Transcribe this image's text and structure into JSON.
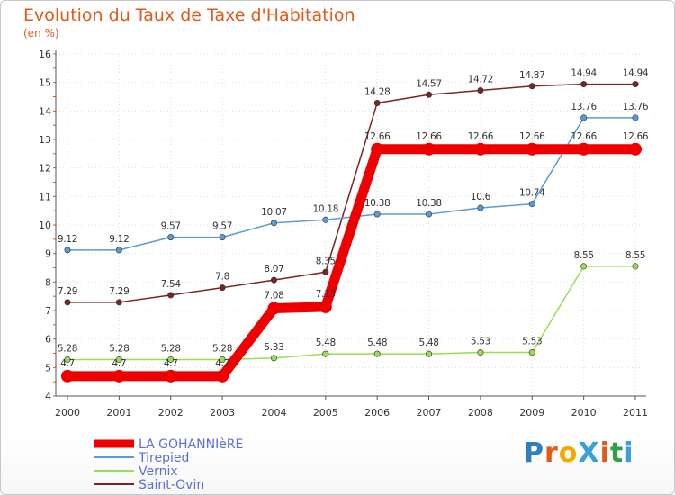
{
  "title": "Evolution du Taux de Taxe d'Habitation",
  "unit_label": "(en %)",
  "logo_text": "ProXiti",
  "colors": {
    "title": "#e05a1b",
    "axis": "#555555",
    "grid": "#dddddd"
  },
  "chart_data": {
    "type": "line",
    "title": "Evolution du Taux de Taxe d'Habitation",
    "ylabel": "(en %)",
    "xlabel": "",
    "ylim": [
      4,
      16
    ],
    "yticks": [
      4,
      5,
      6,
      7,
      8,
      9,
      10,
      11,
      12,
      13,
      14,
      15,
      16
    ],
    "categories": [
      "2000",
      "2001",
      "2002",
      "2003",
      "2004",
      "2005",
      "2006",
      "2007",
      "2008",
      "2009",
      "2010",
      "2011"
    ],
    "legend_position": "bottom-left",
    "series": [
      {
        "name": "LA GOHANNIèRE",
        "color": "#ee0000",
        "values": [
          4.7,
          4.7,
          4.7,
          4.7,
          7.08,
          7.13,
          12.66,
          12.66,
          12.66,
          12.66,
          12.66,
          12.66
        ],
        "labels": [
          "4.7",
          "4.7",
          "4.7",
          "4.7",
          "7.08",
          "7.13",
          "12.66",
          "12.66",
          "12.66",
          "12.66",
          "12.66",
          "12.66"
        ]
      },
      {
        "name": "Tirepied",
        "color": "#5b9bd5",
        "values": [
          9.12,
          9.12,
          9.57,
          9.57,
          10.07,
          10.18,
          10.38,
          10.38,
          10.6,
          10.74,
          13.76,
          13.76
        ],
        "labels": [
          "9.12",
          "9.12",
          "9.57",
          "9.57",
          "10.07",
          "10.18",
          "10.38",
          "10.38",
          "10.6",
          "10.74",
          "13.76",
          "13.76"
        ]
      },
      {
        "name": "Vernix",
        "color": "#99dd55",
        "values": [
          5.28,
          5.28,
          5.28,
          5.28,
          5.33,
          5.48,
          5.48,
          5.48,
          5.53,
          5.53,
          8.55,
          8.55
        ],
        "labels": [
          "5.28",
          "5.28",
          "5.28",
          "5.28",
          "5.33",
          "5.48",
          "5.48",
          "5.48",
          "5.53",
          "5.53",
          "8.55",
          "8.55"
        ]
      },
      {
        "name": "Saint-Ovin",
        "color": "#7a2424",
        "values": [
          7.29,
          7.29,
          7.54,
          7.8,
          8.07,
          8.35,
          14.28,
          14.57,
          14.72,
          14.87,
          14.94,
          14.94
        ],
        "labels": [
          "7.29",
          "7.29",
          "7.54",
          "7.8",
          "8.07",
          "8.35",
          "14.28",
          "14.57",
          "14.72",
          "14.87",
          "14.94",
          "14.94"
        ]
      }
    ]
  }
}
